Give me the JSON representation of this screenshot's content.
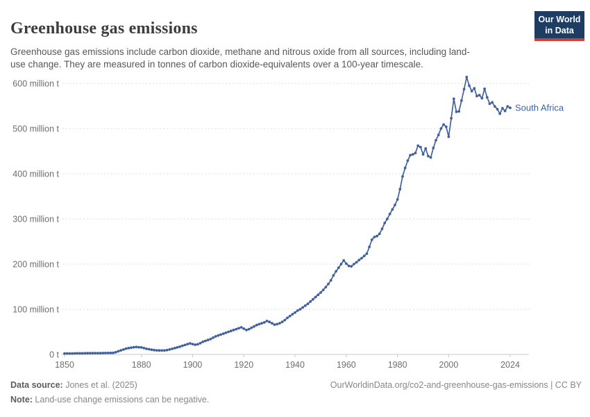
{
  "header": {
    "title": "Greenhouse gas emissions",
    "subtitle": "Greenhouse gas emissions include carbon dioxide, methane and nitrous oxide from all sources, including land-use change. They are measured in tonnes of carbon dioxide-equivalents over a 100-year timescale.",
    "logo": {
      "line1": "Our World",
      "line2": "in Data",
      "bg_color": "#1d3d63",
      "stripe_color": "#d23d33"
    }
  },
  "chart_data": {
    "type": "line",
    "title": "Greenhouse gas emissions",
    "entity": "South Africa",
    "unit": "tonnes of CO2-equivalents",
    "color": "#41619c",
    "grid": "horizontal dashed",
    "legend_position": "end-of-line label",
    "xlim": [
      1850,
      2024
    ],
    "ylim": [
      0,
      620
    ],
    "x_ticks": [
      1850,
      1880,
      1900,
      1920,
      1940,
      1960,
      1980,
      2000,
      2024
    ],
    "y_ticks": [
      {
        "value": 0,
        "label": "0 t"
      },
      {
        "value": 100,
        "label": "100 million t"
      },
      {
        "value": 200,
        "label": "200 million t"
      },
      {
        "value": 300,
        "label": "300 million t"
      },
      {
        "value": 400,
        "label": "400 million t"
      },
      {
        "value": 500,
        "label": "500 million t"
      },
      {
        "value": 600,
        "label": "600 million t"
      }
    ],
    "series": [
      {
        "name": "South Africa",
        "year_start": 1850,
        "year_end": 2024,
        "values_unit": "million tonnes CO2e",
        "values": [
          2,
          2.1,
          2.2,
          2.2,
          2.3,
          2.4,
          2.5,
          2.5,
          2.6,
          2.7,
          2.8,
          2.8,
          2.9,
          3,
          3,
          3.1,
          3.2,
          3.3,
          3.4,
          3.5,
          5,
          7,
          9,
          11,
          13,
          14,
          15,
          16,
          16.5,
          16,
          15.5,
          14,
          12.5,
          11.5,
          10.5,
          9.5,
          9,
          8.8,
          8.7,
          8.8,
          9.5,
          11,
          12.5,
          14,
          15.5,
          17,
          19,
          21,
          23,
          24.5,
          23,
          21.5,
          22.5,
          25,
          28,
          30,
          32,
          34,
          37,
          40,
          42,
          44,
          46,
          48,
          50,
          52,
          54,
          56,
          58,
          60,
          57,
          54,
          56,
          59,
          62,
          65,
          67,
          69,
          71,
          74,
          72,
          69,
          66,
          67,
          69,
          72,
          76,
          81,
          85,
          89,
          93,
          97,
          100,
          104,
          108,
          112,
          117,
          122,
          127,
          132,
          137,
          143,
          149,
          156,
          164,
          175,
          184,
          192,
          200,
          208,
          201,
          196,
          195,
          200,
          204,
          209,
          213,
          218,
          223,
          238,
          254,
          260,
          262,
          267,
          278,
          291,
          300,
          311,
          321,
          331,
          343,
          366,
          394,
          413,
          429,
          441,
          443,
          446,
          462,
          459,
          443,
          456,
          439,
          436,
          457,
          474,
          486,
          500,
          509,
          504,
          482,
          523,
          566,
          537,
          538,
          562,
          587,
          614,
          595,
          583,
          589,
          572,
          574,
          567,
          588,
          569,
          555,
          558,
          549,
          543,
          533,
          545,
          539,
          549,
          546
        ]
      }
    ]
  },
  "footer": {
    "data_source_label": "Data source:",
    "data_source_value": " Jones et al. (2025)",
    "note_label": "Note:",
    "note_value": " Land-use change emissions can be negative.",
    "link": "OurWorldinData.org/co2-and-greenhouse-gas-emissions | CC BY"
  }
}
